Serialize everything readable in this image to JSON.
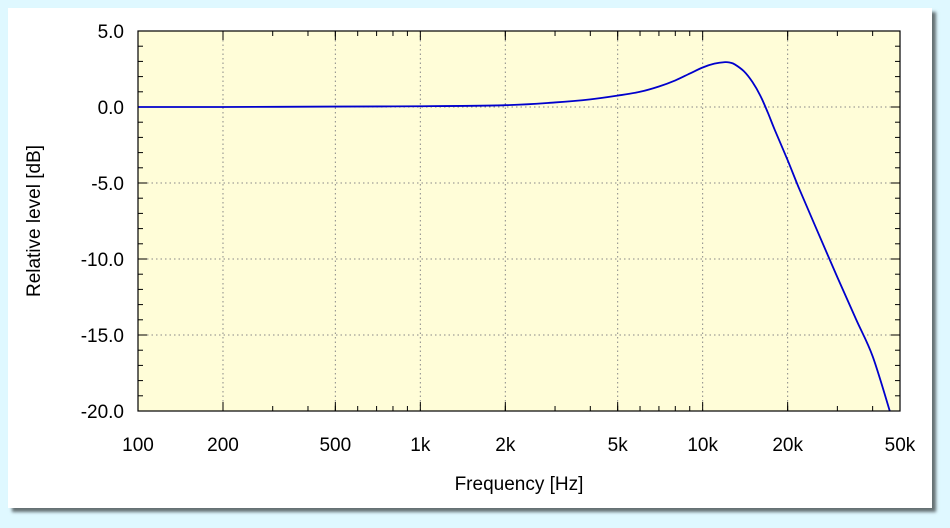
{
  "chart_data": {
    "type": "line",
    "title": "",
    "xlabel": "Frequency [Hz]",
    "ylabel": "Relative level [dB]",
    "xscale": "log",
    "xlim": [
      100,
      50000
    ],
    "ylim": [
      -20,
      5
    ],
    "grid": true,
    "x_ticks": [
      {
        "value": 100,
        "label": "100"
      },
      {
        "value": 200,
        "label": "200"
      },
      {
        "value": 500,
        "label": "500"
      },
      {
        "value": 1000,
        "label": "1k"
      },
      {
        "value": 2000,
        "label": "2k"
      },
      {
        "value": 5000,
        "label": "5k"
      },
      {
        "value": 10000,
        "label": "10k"
      },
      {
        "value": 20000,
        "label": "20k"
      },
      {
        "value": 50000,
        "label": "50k"
      }
    ],
    "y_ticks": [
      {
        "value": 5,
        "label": "5.0"
      },
      {
        "value": 0,
        "label": "0.0"
      },
      {
        "value": -5,
        "label": "-5.0"
      },
      {
        "value": -10,
        "label": "-10.0"
      },
      {
        "value": -15,
        "label": "-15.0"
      },
      {
        "value": -20,
        "label": "-20.0"
      }
    ],
    "series": [
      {
        "color": "#0000cc",
        "x": [
          100,
          200,
          500,
          1000,
          2000,
          3000,
          4000,
          5000,
          6000,
          7000,
          8000,
          9000,
          10000,
          11000,
          12000,
          12500,
          13000,
          14000,
          15000,
          16000,
          17000,
          18000,
          20000,
          22000,
          25000,
          30000,
          35000,
          40000,
          46000
        ],
        "y": [
          0.0,
          0.0,
          0.03,
          0.05,
          0.12,
          0.3,
          0.5,
          0.75,
          1.0,
          1.35,
          1.75,
          2.2,
          2.6,
          2.85,
          2.95,
          2.92,
          2.8,
          2.35,
          1.65,
          0.75,
          -0.35,
          -1.5,
          -3.5,
          -5.4,
          -7.8,
          -11.2,
          -14.0,
          -16.4,
          -20.0
        ]
      }
    ]
  },
  "colors": {
    "page_background": "#dff8ff",
    "plot_background": "#fffdd8",
    "line": "#0000cc",
    "grid": "#888888"
  }
}
